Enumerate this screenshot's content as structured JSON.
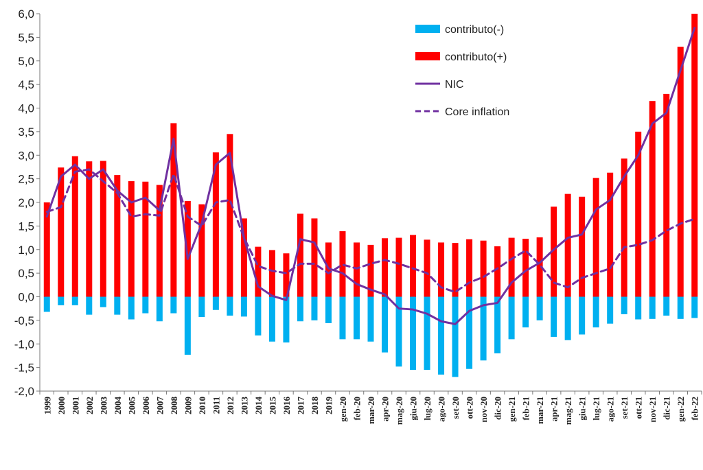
{
  "chart_data": {
    "type": "bar",
    "title": "",
    "xlabel": "",
    "ylabel": "",
    "ylim": [
      -2.0,
      6.0
    ],
    "ytick_step": 0.5,
    "decimal_separator": ",",
    "grid": false,
    "legend_position": "top-right",
    "categories": [
      "1999",
      "2000",
      "2001",
      "2002",
      "2003",
      "2004",
      "2005",
      "2006",
      "2007",
      "2008",
      "2009",
      "2010",
      "2011",
      "2012",
      "2013",
      "2014",
      "2015",
      "2016",
      "2017",
      "2018",
      "2019",
      "gen-20",
      "feb-20",
      "mar-20",
      "apr-20",
      "mag-20",
      "giu-20",
      "lug-20",
      "ago-20",
      "set-20",
      "ott-20",
      "nov-20",
      "dic-20",
      "gen-21",
      "feb-21",
      "mar-21",
      "apr-21",
      "mag-21",
      "giu-21",
      "lug-21",
      "ago-21",
      "set-21",
      "ott-21",
      "nov-21",
      "dic-21",
      "gen-22",
      "feb-22"
    ],
    "series": [
      {
        "name": "contributo(-)",
        "type": "bar",
        "color": "#00b0f0",
        "values": [
          -0.32,
          -0.18,
          -0.18,
          -0.38,
          -0.22,
          -0.38,
          -0.48,
          -0.35,
          -0.52,
          -0.35,
          -1.23,
          -0.43,
          -0.28,
          -0.4,
          -0.42,
          -0.82,
          -0.95,
          -0.97,
          -0.52,
          -0.5,
          -0.56,
          -0.9,
          -0.9,
          -0.95,
          -1.18,
          -1.48,
          -1.55,
          -1.55,
          -1.65,
          -1.7,
          -1.53,
          -1.35,
          -1.2,
          -0.9,
          -0.65,
          -0.5,
          -0.85,
          -0.92,
          -0.8,
          -0.65,
          -0.57,
          -0.37,
          -0.48,
          -0.47,
          -0.4,
          -0.47,
          -0.45
        ]
      },
      {
        "name": "contributo(+)",
        "type": "bar",
        "color": "#ff0000",
        "values": [
          2.0,
          2.74,
          2.98,
          2.87,
          2.88,
          2.58,
          2.45,
          2.44,
          2.37,
          3.68,
          2.03,
          1.96,
          3.06,
          3.45,
          1.66,
          1.06,
          0.99,
          0.92,
          1.76,
          1.66,
          1.15,
          1.39,
          1.15,
          1.1,
          1.24,
          1.25,
          1.31,
          1.21,
          1.15,
          1.14,
          1.22,
          1.19,
          1.07,
          1.25,
          1.23,
          1.26,
          1.91,
          2.18,
          2.12,
          2.52,
          2.63,
          2.93,
          3.5,
          4.15,
          4.3,
          5.3,
          6.0
        ]
      },
      {
        "name": "NIC",
        "type": "line",
        "color": "#7030a0",
        "dash": "solid",
        "values": [
          1.7,
          2.55,
          2.8,
          2.5,
          2.7,
          2.25,
          2.0,
          2.1,
          1.83,
          3.35,
          0.8,
          1.55,
          2.8,
          3.05,
          1.25,
          0.22,
          0.02,
          -0.07,
          1.22,
          1.15,
          0.6,
          0.5,
          0.27,
          0.15,
          0.05,
          -0.25,
          -0.27,
          -0.36,
          -0.52,
          -0.58,
          -0.3,
          -0.18,
          -0.13,
          0.3,
          0.55,
          0.72,
          1.0,
          1.25,
          1.32,
          1.85,
          2.05,
          2.55,
          3.0,
          3.67,
          3.9,
          4.8,
          5.7
        ]
      },
      {
        "name": "Core inflation",
        "type": "line",
        "color": "#7030a0",
        "dash": "dashed",
        "values": [
          1.8,
          1.9,
          2.65,
          2.7,
          2.45,
          2.2,
          1.7,
          1.75,
          1.72,
          2.6,
          1.7,
          1.5,
          2.0,
          2.05,
          1.25,
          0.65,
          0.55,
          0.5,
          0.7,
          0.7,
          0.5,
          0.68,
          0.6,
          0.7,
          0.78,
          0.7,
          0.6,
          0.5,
          0.2,
          0.1,
          0.3,
          0.42,
          0.6,
          0.8,
          0.98,
          0.68,
          0.3,
          0.2,
          0.4,
          0.5,
          0.6,
          1.05,
          1.1,
          1.2,
          1.4,
          1.55,
          1.65
        ]
      }
    ]
  }
}
